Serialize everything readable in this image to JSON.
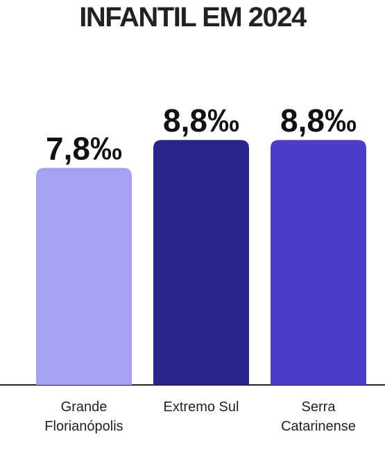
{
  "title": "INFANTIL EM 2024",
  "chart_data": {
    "type": "bar",
    "categories": [
      [
        "Grande",
        "Florianópolis"
      ],
      [
        "Extremo Sul"
      ],
      [
        "Serra",
        "Catarinense"
      ]
    ],
    "values": [
      7.8,
      8.8,
      8.8
    ],
    "value_labels": [
      "7,8‰",
      "8,8‰",
      "8,8‰"
    ],
    "colors": [
      "#a6a1f0",
      "#27258a",
      "#4a3ec8"
    ],
    "ylim": [
      0,
      11
    ],
    "grid": false,
    "axis_color": "#222222"
  }
}
